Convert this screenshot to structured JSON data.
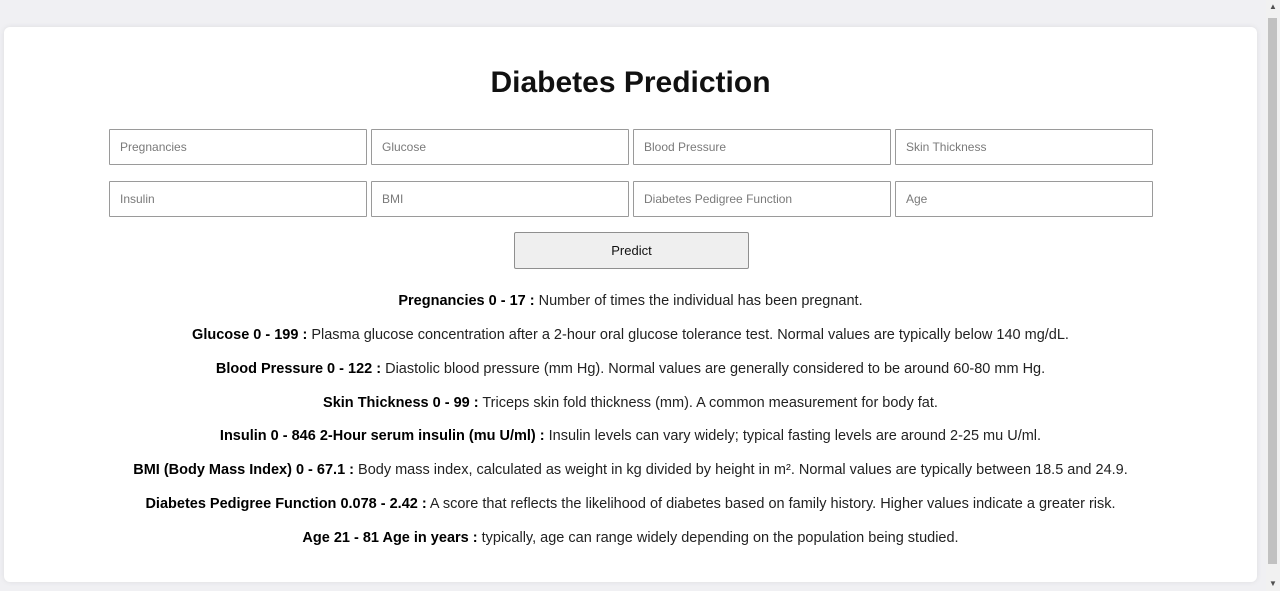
{
  "page": {
    "title": "Diabetes Prediction"
  },
  "form": {
    "fields": [
      {
        "name": "Pregnancies",
        "placeholder": "Pregnancies",
        "value": ""
      },
      {
        "name": "Glucose",
        "placeholder": "Glucose",
        "value": ""
      },
      {
        "name": "Blood Pressure",
        "placeholder": "Blood Pressure",
        "value": ""
      },
      {
        "name": "Skin Thickness",
        "placeholder": "Skin Thickness",
        "value": ""
      },
      {
        "name": "Insulin",
        "placeholder": "Insulin",
        "value": ""
      },
      {
        "name": "BMI",
        "placeholder": "BMI",
        "value": ""
      },
      {
        "name": "Diabetes Pedigree Function",
        "placeholder": "Diabetes Pedigree Function",
        "value": ""
      },
      {
        "name": "Age",
        "placeholder": "Age",
        "value": ""
      }
    ],
    "submit_label": "Predict"
  },
  "info": [
    {
      "label": "Pregnancies 0 - 17 :",
      "text": " Number of times the individual has been pregnant."
    },
    {
      "label": "Glucose 0 - 199 :",
      "text": " Plasma glucose concentration after a 2-hour oral glucose tolerance test. Normal values are typically below 140 mg/dL."
    },
    {
      "label": "Blood Pressure 0 - 122 :",
      "text": " Diastolic blood pressure (mm Hg). Normal values are generally considered to be around 60-80 mm Hg."
    },
    {
      "label": "Skin Thickness 0 - 99 :",
      "text": " Triceps skin fold thickness (mm). A common measurement for body fat."
    },
    {
      "label": "Insulin 0 - 846 2-Hour serum insulin (mu U/ml) :",
      "text": " Insulin levels can vary widely; typical fasting levels are around 2-25 mu U/ml."
    },
    {
      "label": "BMI (Body Mass Index) 0 - 67.1 :",
      "text": " Body mass index, calculated as weight in kg divided by height in m². Normal values are typically between 18.5 and 24.9."
    },
    {
      "label": "Diabetes Pedigree Function 0.078 - 2.42 :",
      "text": " A score that reflects the likelihood of diabetes based on family history. Higher values indicate a greater risk."
    },
    {
      "label": "Age 21 - 81 Age in years :",
      "text": " typically, age can range widely depending on the population being studied."
    }
  ],
  "scrollbar": {
    "up_glyph": "▲",
    "down_glyph": "▼"
  }
}
